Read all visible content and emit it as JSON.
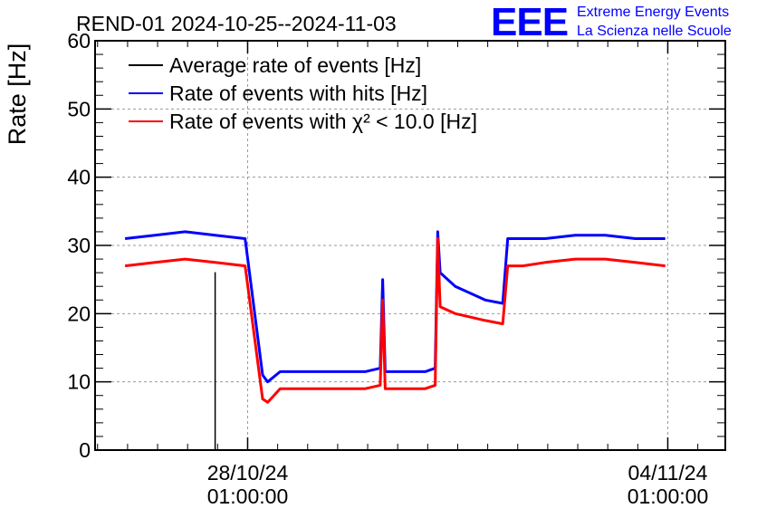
{
  "chart_data": {
    "type": "line",
    "title": "REND-01 2024-10-25--2024-11-03",
    "ylabel": "Rate [Hz]",
    "xlabel": "",
    "ylim": [
      0,
      60
    ],
    "yticks": [
      0,
      10,
      20,
      30,
      40,
      50,
      60
    ],
    "xlim": [
      "2024-10-25T12:00:00",
      "2024-11-05T00:00:00"
    ],
    "xticks": [
      {
        "date": "2024-10-28T01:00:00",
        "label_date": "28/10/24",
        "label_time": "01:00:00"
      },
      {
        "date": "2024-11-04T01:00:00",
        "label_date": "04/11/24",
        "label_time": "01:00:00"
      }
    ],
    "grid": true,
    "legend_position": "top-left",
    "series": [
      {
        "name": "Average rate of events [Hz]",
        "color": "#000000",
        "x": [
          "2024-10-25T12:00:00",
          "2024-10-27T12:00:00",
          "2024-10-27T12:00:00",
          "2024-10-27T12:00:00"
        ],
        "values": [
          0,
          0,
          26,
          0
        ]
      },
      {
        "name": "Rate of events with hits [Hz]",
        "color": "#0000ff",
        "x": [
          "2024-10-26T00:00:00",
          "2024-10-26T12:00:00",
          "2024-10-27T00:00:00",
          "2024-10-27T12:00:00",
          "2024-10-28T00:00:00",
          "2024-10-28T07:00:00",
          "2024-10-28T09:00:00",
          "2024-10-28T14:00:00",
          "2024-10-29T00:00:00",
          "2024-10-29T12:00:00",
          "2024-10-30T00:00:00",
          "2024-10-30T06:00:00",
          "2024-10-30T07:00:00",
          "2024-10-30T08:00:00",
          "2024-10-30T16:00:00",
          "2024-10-31T00:00:00",
          "2024-10-31T04:00:00",
          "2024-10-31T05:00:00",
          "2024-10-31T06:00:00",
          "2024-10-31T12:00:00",
          "2024-11-01T00:00:00",
          "2024-11-01T07:00:00",
          "2024-11-01T09:00:00",
          "2024-11-01T15:00:00",
          "2024-11-02T00:00:00",
          "2024-11-02T12:00:00",
          "2024-11-03T00:00:00",
          "2024-11-03T12:00:00",
          "2024-11-04T00:00:00"
        ],
        "values": [
          31,
          31.5,
          32,
          31.5,
          31,
          11,
          10,
          11.5,
          11.5,
          11.5,
          11.5,
          12,
          25,
          11.5,
          11.5,
          11.5,
          12,
          32,
          26,
          24,
          22,
          21.5,
          31,
          31,
          31,
          31.5,
          31.5,
          31,
          31
        ]
      },
      {
        "name": "Rate of events with χ² < 10.0 [Hz]",
        "color": "#ff0000",
        "x": [
          "2024-10-26T00:00:00",
          "2024-10-26T12:00:00",
          "2024-10-27T00:00:00",
          "2024-10-27T12:00:00",
          "2024-10-28T00:00:00",
          "2024-10-28T07:00:00",
          "2024-10-28T09:00:00",
          "2024-10-28T14:00:00",
          "2024-10-29T00:00:00",
          "2024-10-29T12:00:00",
          "2024-10-30T00:00:00",
          "2024-10-30T06:00:00",
          "2024-10-30T07:00:00",
          "2024-10-30T08:00:00",
          "2024-10-30T16:00:00",
          "2024-10-31T00:00:00",
          "2024-10-31T04:00:00",
          "2024-10-31T05:00:00",
          "2024-10-31T06:00:00",
          "2024-10-31T12:00:00",
          "2024-11-01T00:00:00",
          "2024-11-01T07:00:00",
          "2024-11-01T09:00:00",
          "2024-11-01T15:00:00",
          "2024-11-02T00:00:00",
          "2024-11-02T12:00:00",
          "2024-11-03T00:00:00",
          "2024-11-03T12:00:00",
          "2024-11-04T00:00:00"
        ],
        "values": [
          27,
          27.5,
          28,
          27.5,
          27,
          7.5,
          7,
          9,
          9,
          9,
          9,
          9.5,
          22,
          9,
          9,
          9,
          9.5,
          31,
          21,
          20,
          19,
          18.5,
          27,
          27,
          27.5,
          28,
          28,
          27.5,
          27
        ]
      }
    ],
    "logo": {
      "mark": "EEE",
      "line1": "Extreme Energy Events",
      "line2": "La Scienza nelle Scuole",
      "color": "#0000ff"
    }
  }
}
